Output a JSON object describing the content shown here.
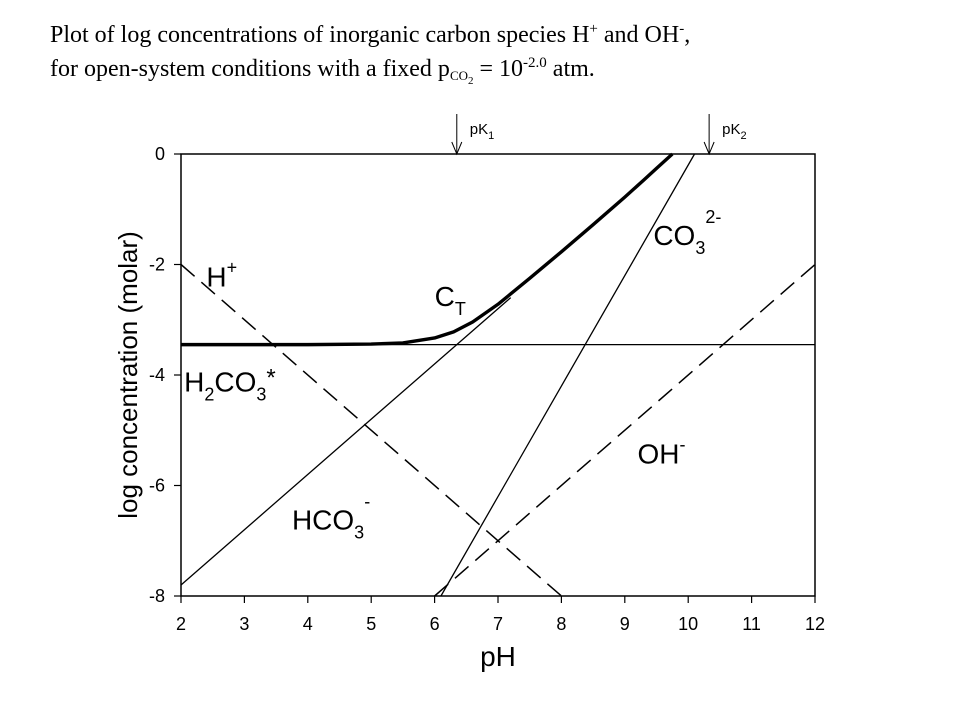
{
  "title": {
    "line1_pre": "Plot of log concentrations of inorganic carbon species H",
    "line1_sup1": "+",
    "line1_mid": " and OH",
    "line1_sup2": "-",
    "line1_end": ",",
    "line2_pre": "for open-system  conditions with a fixed p",
    "line2_sub": "CO",
    "line2_subsub": "2",
    "line2_mid": " = 10",
    "line2_sup": "-2.0",
    "line2_end": " atm."
  },
  "chart_data": {
    "type": "line",
    "xlabel": "pH",
    "ylabel": "log concentration (molar)",
    "xlim": [
      2,
      12
    ],
    "ylim": [
      -8,
      0
    ],
    "xticks": [
      "2",
      "3",
      "4",
      "5",
      "6",
      "7",
      "8",
      "9",
      "10",
      "11",
      "12"
    ],
    "yticks": [
      "0",
      "-2",
      "-4",
      "-6",
      "-8"
    ],
    "markers": [
      {
        "label": "pK",
        "sub": "1",
        "x": 6.35
      },
      {
        "label": "pK",
        "sub": "2",
        "x": 10.33
      }
    ],
    "series": [
      {
        "name": "H+",
        "style": "dashed",
        "x": [
          2,
          8
        ],
        "y": [
          -2,
          -8
        ]
      },
      {
        "name": "OH-",
        "style": "dashed",
        "x": [
          6,
          12
        ],
        "y": [
          -8,
          -2
        ]
      },
      {
        "name": "H2CO3*",
        "style": "solid",
        "x": [
          2,
          12
        ],
        "y": [
          -3.45,
          -3.45
        ]
      },
      {
        "name": "HCO3-",
        "style": "solid",
        "x": [
          2,
          7.2
        ],
        "y": [
          -7.8,
          -2.6
        ]
      },
      {
        "name": "CO3 2-",
        "style": "solid",
        "x": [
          6.1,
          10.1
        ],
        "y": [
          -8,
          0
        ]
      },
      {
        "name": "CT",
        "style": "bold",
        "x": [
          2,
          3,
          4,
          5,
          5.5,
          6,
          6.3,
          6.6,
          7,
          7.5,
          8,
          8.5,
          9,
          9.3,
          9.5,
          9.75
        ],
        "y": [
          -3.45,
          -3.45,
          -3.45,
          -3.44,
          -3.42,
          -3.33,
          -3.22,
          -3.04,
          -2.72,
          -2.25,
          -1.77,
          -1.28,
          -0.78,
          -0.47,
          -0.26,
          0
        ]
      }
    ],
    "labels": [
      {
        "series": "H+",
        "text": "H",
        "sup": "+",
        "x": 2.4,
        "y": -2.4
      },
      {
        "series": "CT",
        "text": "C",
        "sub": "T",
        "x": 6.0,
        "y": -2.75
      },
      {
        "series": "CO3 2-",
        "text": "CO",
        "sub": "3",
        "sup": "2-",
        "x": 9.45,
        "y": -1.65
      },
      {
        "series": "H2CO3*",
        "text": "H",
        "sub": "2",
        "text2": "CO",
        "sub2": "3",
        "tail": "*",
        "x": 2.05,
        "y": -4.3
      },
      {
        "series": "OH-",
        "text": "OH",
        "sup": "-",
        "x": 9.2,
        "y": -5.6
      },
      {
        "series": "HCO3-",
        "text": "HCO",
        "sub": "3",
        "sup": "-",
        "x": 3.75,
        "y": -6.8
      }
    ]
  }
}
